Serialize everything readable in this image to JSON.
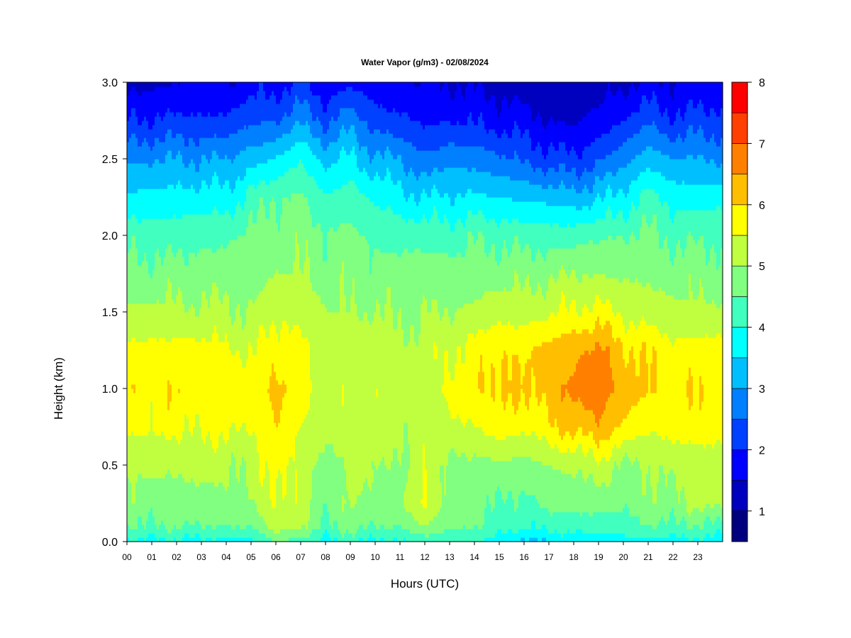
{
  "chart_data": {
    "type": "heatmap",
    "title": "Water Vapor (g/m3) - 02/08/2024",
    "xlabel": "Hours (UTC)",
    "ylabel": "Height (km)",
    "x_ticks": [
      "00",
      "01",
      "02",
      "03",
      "04",
      "05",
      "06",
      "07",
      "08",
      "09",
      "10",
      "11",
      "12",
      "13",
      "14",
      "15",
      "16",
      "17",
      "18",
      "19",
      "20",
      "21",
      "22",
      "23"
    ],
    "x_range_hours": [
      0,
      24
    ],
    "y_ticks": [
      "0.0",
      "0.5",
      "1.0",
      "1.5",
      "2.0",
      "2.5",
      "3.0"
    ],
    "y_range_km": [
      0,
      3
    ],
    "colorbar": {
      "min": 0.5,
      "max": 8,
      "step": 0.5,
      "tick_labels": [
        "1",
        "2",
        "3",
        "4",
        "5",
        "6",
        "7",
        "8"
      ],
      "colors": [
        "#00007f",
        "#0000bf",
        "#0000ff",
        "#0040ff",
        "#0080ff",
        "#00bfff",
        "#00ffff",
        "#40ffbf",
        "#80ff80",
        "#bfff40",
        "#ffff00",
        "#ffbf00",
        "#ff8000",
        "#ff4000",
        "#ff0000",
        "#bf0000",
        "#7f0000"
      ]
    },
    "profile_heights_km": [
      0.0,
      0.1,
      0.25,
      0.5,
      0.75,
      1.0,
      1.25,
      1.5,
      1.75,
      2.0,
      2.25,
      2.5,
      2.75,
      3.0
    ],
    "profiles": [
      {
        "hour": 0,
        "values": [
          3.9,
          4.5,
          4.8,
          5.1,
          5.6,
          5.8,
          5.6,
          5.1,
          4.7,
          4.3,
          3.6,
          2.9,
          2.0,
          1.3
        ]
      },
      {
        "hour": 2,
        "values": [
          3.9,
          4.5,
          4.8,
          5.1,
          5.6,
          5.9,
          5.7,
          5.1,
          4.7,
          4.3,
          3.7,
          3.0,
          2.1,
          1.5
        ]
      },
      {
        "hour": 4,
        "values": [
          3.8,
          4.5,
          4.9,
          5.1,
          5.6,
          5.9,
          5.6,
          5.1,
          4.8,
          4.4,
          3.7,
          3.0,
          2.1,
          1.5
        ]
      },
      {
        "hour": 5,
        "values": [
          3.9,
          4.5,
          4.9,
          5.1,
          5.5,
          5.6,
          5.4,
          5.0,
          4.8,
          4.6,
          4.2,
          3.3,
          2.4,
          1.7
        ]
      },
      {
        "hour": 6,
        "values": [
          4.5,
          5.3,
          5.6,
          5.8,
          6.0,
          6.2,
          5.9,
          5.4,
          5.0,
          4.8,
          4.5,
          3.5,
          2.5,
          1.8
        ]
      },
      {
        "hour": 7,
        "values": [
          4.3,
          5.0,
          5.2,
          5.3,
          5.5,
          5.7,
          5.6,
          5.4,
          5.0,
          4.8,
          4.6,
          4.0,
          2.9,
          2.0
        ]
      },
      {
        "hour": 8,
        "values": [
          3.8,
          4.4,
          4.7,
          4.8,
          5.1,
          5.3,
          5.2,
          5.0,
          4.8,
          4.6,
          4.0,
          3.3,
          2.4,
          1.6
        ]
      },
      {
        "hour": 9,
        "values": [
          4.1,
          4.7,
          5.0,
          5.1,
          5.2,
          5.3,
          5.2,
          5.0,
          4.8,
          4.6,
          4.3,
          3.6,
          2.8,
          1.9
        ]
      },
      {
        "hour": 10,
        "values": [
          3.9,
          4.5,
          4.9,
          5.0,
          5.3,
          5.5,
          5.3,
          5.0,
          4.7,
          4.4,
          3.9,
          3.1,
          2.3,
          1.6
        ]
      },
      {
        "hour": 11,
        "values": [
          3.9,
          4.5,
          4.9,
          4.9,
          5.1,
          5.2,
          5.1,
          4.9,
          4.7,
          4.3,
          3.7,
          3.0,
          2.1,
          1.6
        ]
      },
      {
        "hour": 12,
        "values": [
          4.2,
          5.0,
          5.6,
          5.4,
          5.3,
          5.3,
          5.2,
          5.0,
          4.8,
          4.3,
          3.5,
          2.6,
          1.9,
          1.5
        ]
      },
      {
        "hour": 13,
        "values": [
          4.1,
          4.6,
          4.8,
          4.9,
          5.4,
          5.6,
          5.5,
          5.0,
          4.7,
          4.3,
          3.6,
          2.8,
          2.0,
          1.5
        ]
      },
      {
        "hour": 14,
        "values": [
          4.0,
          4.5,
          4.7,
          4.8,
          5.5,
          5.8,
          5.7,
          5.1,
          4.8,
          4.4,
          3.6,
          2.8,
          1.9,
          1.4
        ]
      },
      {
        "hour": 15,
        "values": [
          3.8,
          4.3,
          4.5,
          4.9,
          5.8,
          6.2,
          6.0,
          5.3,
          4.8,
          4.4,
          3.5,
          2.6,
          1.8,
          1.3
        ]
      },
      {
        "hour": 16,
        "values": [
          3.3,
          4.0,
          4.3,
          4.8,
          5.6,
          6.0,
          5.9,
          5.3,
          4.8,
          4.3,
          3.4,
          2.4,
          1.7,
          1.2
        ]
      },
      {
        "hour": 17,
        "values": [
          3.6,
          4.2,
          4.7,
          5.0,
          5.9,
          6.3,
          6.2,
          5.4,
          4.9,
          4.3,
          3.3,
          2.2,
          1.5,
          1.1
        ]
      },
      {
        "hour": 18,
        "values": [
          3.6,
          4.2,
          4.7,
          5.1,
          6.2,
          6.6,
          6.4,
          5.6,
          5.0,
          4.3,
          3.2,
          2.1,
          1.4,
          1.0
        ]
      },
      {
        "hour": 19,
        "values": [
          3.6,
          4.2,
          4.7,
          5.3,
          6.4,
          6.9,
          6.6,
          5.7,
          5.0,
          4.4,
          3.4,
          2.4,
          1.7,
          1.2
        ]
      },
      {
        "hour": 20,
        "values": [
          3.7,
          4.3,
          4.6,
          4.9,
          5.9,
          6.3,
          6.1,
          5.4,
          4.9,
          4.5,
          3.7,
          2.8,
          2.0,
          1.4
        ]
      },
      {
        "hour": 21,
        "values": [
          3.9,
          4.5,
          4.8,
          5.0,
          5.6,
          6.0,
          5.9,
          5.3,
          4.9,
          4.6,
          4.2,
          3.3,
          2.4,
          1.6
        ]
      },
      {
        "hour": 22,
        "values": [
          3.8,
          4.4,
          4.9,
          5.1,
          5.7,
          5.9,
          5.7,
          5.1,
          4.8,
          4.4,
          3.8,
          3.0,
          2.1,
          1.5
        ]
      },
      {
        "hour": 23,
        "values": [
          3.8,
          4.4,
          5.1,
          5.2,
          5.8,
          5.9,
          5.7,
          5.1,
          4.8,
          4.4,
          3.8,
          3.0,
          2.2,
          1.6
        ]
      },
      {
        "hour": 24,
        "values": [
          3.8,
          4.4,
          5.1,
          5.2,
          5.8,
          5.9,
          5.7,
          5.1,
          4.8,
          4.4,
          3.8,
          3.0,
          2.2,
          1.6
        ]
      }
    ]
  }
}
